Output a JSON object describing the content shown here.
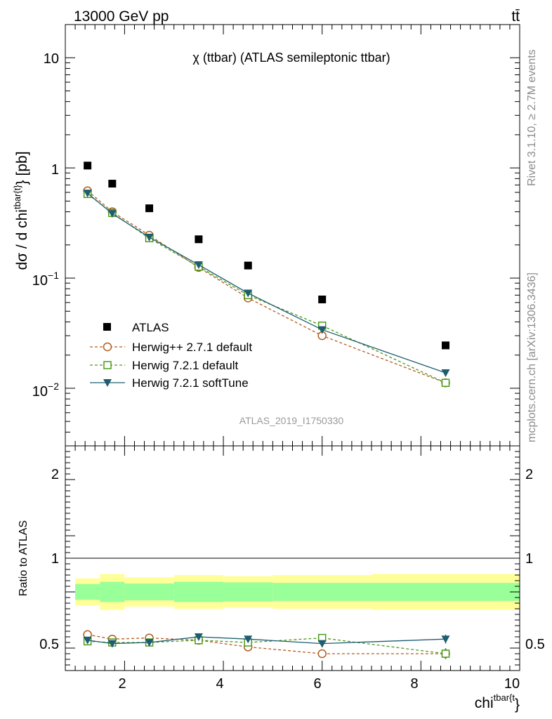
{
  "header": {
    "left": "13000 GeV pp",
    "right": "tt̄"
  },
  "side_labels": {
    "rivet": "Rivet 3.1.10, ≥ 2.7M events",
    "mcplots": "mcplots.cern.ch [arXiv:1306.3436]"
  },
  "chart_data": [
    {
      "type": "scatter",
      "title": "χ (ttbar) (ATLAS semileptonic ttbar)",
      "watermark": "ATLAS_2019_I1750330",
      "ylabel": "dσ / d chi^{tbar{t}} [pb]",
      "xlabel": "",
      "yscale": "log",
      "xlim": [
        0.8,
        10
      ],
      "ylim": [
        0.003,
        20
      ],
      "y_tick_labels": [
        "10^{-2}",
        "10^{-1}",
        "1",
        "10"
      ],
      "legend_position": "bottom-left",
      "series": [
        {
          "name": "ATLAS",
          "color": "#000000",
          "marker": "filled-square",
          "line": "none",
          "x": [
            1.25,
            1.75,
            2.5,
            3.5,
            4.5,
            6,
            8.5
          ],
          "y": [
            1.05,
            0.72,
            0.43,
            0.225,
            0.13,
            0.064,
            0.0245
          ]
        },
        {
          "name": "Herwig++ 2.7.1 default",
          "color": "#b35c1e",
          "marker": "open-circle",
          "line": "dashed",
          "x": [
            1.25,
            1.75,
            2.5,
            3.5,
            4.5,
            6,
            8.5
          ],
          "y": [
            0.62,
            0.4,
            0.245,
            0.125,
            0.066,
            0.03,
            0.0112
          ]
        },
        {
          "name": "Herwig 7.2.1 default",
          "color": "#4c9a1a",
          "marker": "open-square",
          "line": "dashed",
          "x": [
            1.25,
            1.75,
            2.5,
            3.5,
            4.5,
            6,
            8.5
          ],
          "y": [
            0.58,
            0.39,
            0.23,
            0.127,
            0.07,
            0.037,
            0.0112
          ]
        },
        {
          "name": "Herwig 7.2.1 softTune",
          "color": "#1d5d6e",
          "marker": "filled-triangle-down",
          "line": "solid",
          "x": [
            1.25,
            1.75,
            2.5,
            3.5,
            4.5,
            6,
            8.5
          ],
          "y": [
            0.59,
            0.385,
            0.235,
            0.132,
            0.073,
            0.034,
            0.0138
          ]
        }
      ]
    },
    {
      "type": "line",
      "ylabel": "Ratio to ATLAS",
      "xlabel": "chi^{tbar{t}}",
      "xlim": [
        0.8,
        10
      ],
      "ylim": [
        0.3,
        2.3
      ],
      "x_tick_labels": [
        "2",
        "4",
        "6",
        "8",
        "10"
      ],
      "y_tick_labels": [
        "0.5",
        "1",
        "2"
      ],
      "uncertainty_bands": {
        "bins": [
          [
            1.0,
            1.5
          ],
          [
            1.5,
            2.0
          ],
          [
            2.0,
            3.0
          ],
          [
            3.0,
            4.0
          ],
          [
            4.0,
            5.0
          ],
          [
            5.0,
            7.0
          ],
          [
            7.0,
            10.0
          ]
        ],
        "stat_syst_inner": [
          0.07,
          0.09,
          0.075,
          0.09,
          0.085,
          0.08,
          0.08
        ],
        "total_outer": [
          0.12,
          0.16,
          0.13,
          0.15,
          0.14,
          0.15,
          0.16
        ],
        "inner_color": "#99ff99",
        "outer_color": "#ffff99"
      },
      "series": [
        {
          "name": "Herwig++ 2.7.1 default",
          "color": "#b35c1e",
          "x": [
            1.25,
            1.75,
            2.5,
            3.5,
            4.5,
            6,
            8.5
          ],
          "y": [
            0.62,
            0.58,
            0.59,
            0.57,
            0.51,
            0.45,
            0.45
          ],
          "err": [
            0.01,
            0.01,
            0.01,
            0.015,
            0.03,
            0.03,
            0.05
          ]
        },
        {
          "name": "Herwig 7.2.1 default",
          "color": "#4c9a1a",
          "x": [
            1.25,
            1.75,
            2.5,
            3.5,
            4.5,
            6,
            8.5
          ],
          "y": [
            0.56,
            0.55,
            0.55,
            0.57,
            0.55,
            0.59,
            0.45
          ],
          "err": [
            0.01,
            0.01,
            0.01,
            0.015,
            0.025,
            0.025,
            0.05
          ]
        },
        {
          "name": "Herwig 7.2.1 softTune",
          "color": "#1d5d6e",
          "x": [
            1.25,
            1.75,
            2.5,
            3.5,
            4.5,
            6,
            8.5
          ],
          "y": [
            0.57,
            0.54,
            0.55,
            0.6,
            0.58,
            0.54,
            0.58
          ],
          "err": [
            0.01,
            0.01,
            0.01,
            0.015,
            0.025,
            0.03,
            0.04
          ]
        }
      ]
    }
  ]
}
